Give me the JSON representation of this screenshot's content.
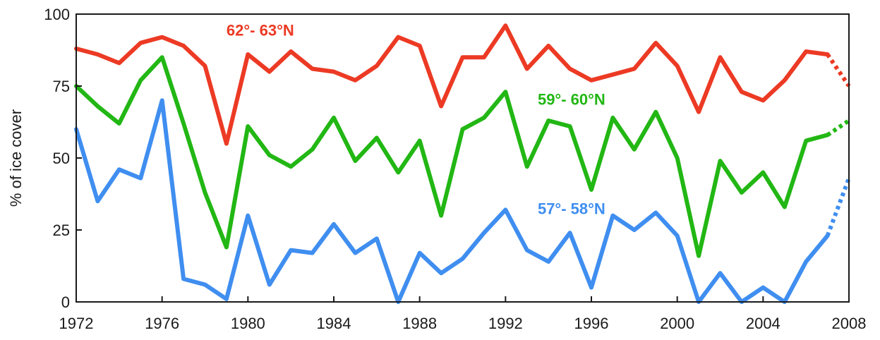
{
  "chart_data": {
    "type": "line",
    "xlabel": "",
    "ylabel": "% of ice cover",
    "xlim": [
      1972,
      2008
    ],
    "ylim": [
      0,
      100
    ],
    "xticks": [
      1972,
      1976,
      1980,
      1984,
      1988,
      1992,
      1996,
      2000,
      2004,
      2008
    ],
    "yticks": [
      0,
      25,
      50,
      75,
      100
    ],
    "grid": false,
    "series": [
      {
        "name": "62°- 63°N",
        "color": "#ec3a24",
        "x": [
          1972,
          1973,
          1974,
          1975,
          1976,
          1977,
          1978,
          1979,
          1980,
          1981,
          1982,
          1983,
          1984,
          1985,
          1986,
          1987,
          1988,
          1989,
          1990,
          1991,
          1992,
          1993,
          1994,
          1995,
          1996,
          1997,
          1998,
          1999,
          2000,
          2001,
          2002,
          2003,
          2004,
          2005,
          2006,
          2007
        ],
        "values": [
          88,
          86,
          83,
          90,
          92,
          89,
          82,
          55,
          86,
          80,
          87,
          81,
          80,
          77,
          82,
          92,
          89,
          68,
          85,
          85,
          96,
          81,
          89,
          81,
          77,
          79,
          81,
          90,
          82,
          66,
          85,
          73,
          70,
          77,
          87,
          86
        ],
        "projected": {
          "x": [
            2007,
            2008
          ],
          "values": [
            86,
            75
          ]
        },
        "label_pos": [
          1979.0,
          92.5
        ]
      },
      {
        "name": "59°- 60°N",
        "color": "#22b714",
        "x": [
          1972,
          1973,
          1974,
          1975,
          1976,
          1977,
          1978,
          1979,
          1980,
          1981,
          1982,
          1983,
          1984,
          1985,
          1986,
          1987,
          1988,
          1989,
          1990,
          1991,
          1992,
          1993,
          1994,
          1995,
          1996,
          1997,
          1998,
          1999,
          2000,
          2001,
          2002,
          2003,
          2004,
          2005,
          2006,
          2007
        ],
        "values": [
          75,
          68,
          62,
          77,
          85,
          62,
          38,
          19,
          61,
          51,
          47,
          53,
          64,
          49,
          57,
          45,
          56,
          30,
          60,
          64,
          73,
          47,
          63,
          61,
          39,
          64,
          53,
          66,
          50,
          16,
          49,
          38,
          45,
          33,
          56,
          58
        ],
        "projected": {
          "x": [
            2007,
            2008
          ],
          "values": [
            58,
            63
          ]
        },
        "label_pos": [
          1993.5,
          68.5
        ]
      },
      {
        "name": "57°- 58°N",
        "color": "#3f8ef0",
        "x": [
          1972,
          1973,
          1974,
          1975,
          1976,
          1977,
          1978,
          1979,
          1980,
          1981,
          1982,
          1983,
          1984,
          1985,
          1986,
          1987,
          1988,
          1989,
          1990,
          1991,
          1992,
          1993,
          1994,
          1995,
          1996,
          1997,
          1998,
          1999,
          2000,
          2001,
          2002,
          2003,
          2004,
          2005,
          2006,
          2007
        ],
        "values": [
          60,
          35,
          46,
          43,
          70,
          8,
          6,
          1,
          30,
          6,
          18,
          17,
          27,
          17,
          22,
          0,
          17,
          10,
          15,
          24,
          32,
          18,
          14,
          24,
          5,
          30,
          25,
          31,
          23,
          0,
          10,
          0,
          5,
          0,
          14,
          23
        ],
        "projected": {
          "x": [
            2007,
            2008
          ],
          "values": [
            23,
            43
          ]
        },
        "label_pos": [
          1993.5,
          30.5
        ]
      }
    ]
  }
}
